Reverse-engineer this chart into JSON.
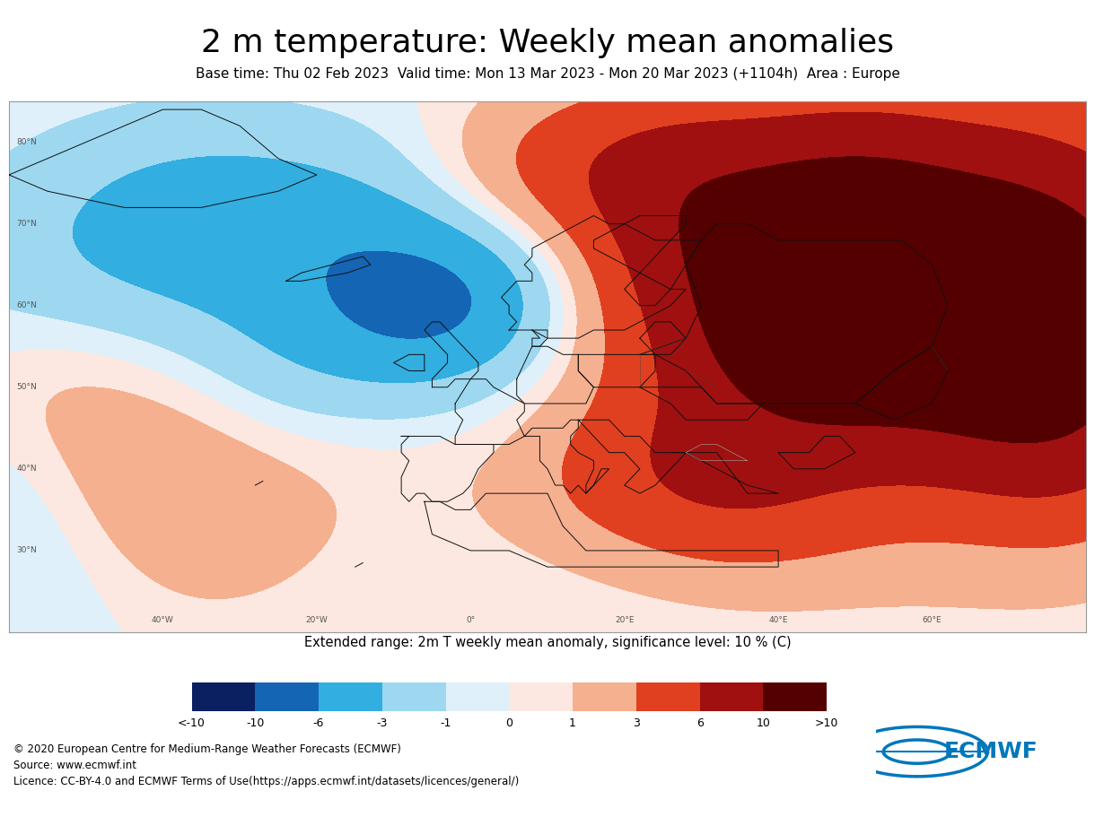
{
  "title": "2 m temperature: Weekly mean anomalies",
  "subtitle": "Base time: Thu 02 Feb 2023  Valid time: Mon 13 Mar 2023 - Mon 20 Mar 2023 (+1104h)  Area : Europe",
  "colorbar_label": "Extended range: 2m T weekly mean anomaly, significance level: 10 % (C)",
  "colorbar_ticks": [
    "<-10",
    "-10",
    "-6",
    "-3",
    "-1",
    "0",
    "1",
    "3",
    "6",
    "10",
    ">10"
  ],
  "colorbar_colors": [
    "#0a2060",
    "#1565b5",
    "#32aee0",
    "#9dd8f0",
    "#dff0fa",
    "#fce8e0",
    "#f5b090",
    "#e04020",
    "#a01010",
    "#550000"
  ],
  "copyright_text": "© 2020 European Centre for Medium-Range Weather Forecasts (ECMWF)\nSource: www.ecmwf.int\nLicence: CC-BY-4.0 and ECMWF Terms of Use(https://apps.ecmwf.int/datasets/licences/general/)",
  "background_color": "#ffffff",
  "title_fontsize": 26,
  "subtitle_fontsize": 11,
  "map_bg_color": "#ffffff",
  "ocean_color": "#ffffff",
  "land_color": "#ffffff",
  "grid_color": "#aaaaaa",
  "coast_color": "#000000",
  "border_color": "#555555",
  "ecmwf_blue": "#0077bb"
}
